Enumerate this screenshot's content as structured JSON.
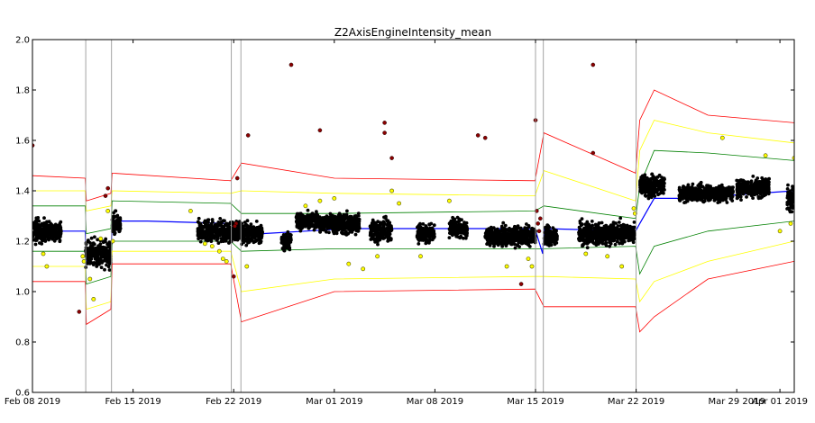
{
  "chart_data": {
    "type": "scatter",
    "title": "Z2AxisEngineIntensity_mean",
    "xlabel": "",
    "ylabel": "",
    "xlim": [
      "2019-02-08",
      "2019-04-02"
    ],
    "ylim": [
      0.6,
      2.0
    ],
    "x_ticks": [
      "Feb 08 2019",
      "Feb 15 2019",
      "Feb 22 2019",
      "Mar 01 2019",
      "Mar 08 2019",
      "Mar 15 2019",
      "Mar 22 2019",
      "Mar 29 2019",
      "Apr 01 2019"
    ],
    "y_ticks": [
      "0.6",
      "0.8",
      "1.0",
      "1.2",
      "1.4",
      "1.6",
      "1.8",
      "2.0"
    ],
    "grid": false,
    "colors": {
      "normal_points": "#000000",
      "warning_points": "#ffff00",
      "outlier_points": "#8b0000",
      "mean_line": "#0000ff",
      "band_1_sigma": "#008000",
      "band_2_sigma": "#ffff00",
      "band_3_sigma": "#ff0000",
      "segment_lines": "#999999"
    },
    "segment_boundaries": [
      "2019-02-11T17:00",
      "2019-02-13T12:00",
      "2019-02-21T20:00",
      "2019-02-22T12:00",
      "2019-03-15T00:00",
      "2019-03-15T13:00",
      "2019-03-22T00:00"
    ],
    "mean_line": {
      "x": [
        "2019-02-08",
        "2019-02-09",
        "2019-02-11T16:00",
        "2019-02-11T18:00",
        "2019-02-12T12:00",
        "2019-02-13T11:00",
        "2019-02-13T13:00",
        "2019-02-16",
        "2019-02-21T19:00",
        "2019-02-22T11:00",
        "2019-02-22T13:00",
        "2019-02-24",
        "2019-02-27",
        "2019-03-02",
        "2019-03-08",
        "2019-03-14T23:00",
        "2019-03-15T12:00",
        "2019-03-15T14:00",
        "2019-03-21T23:00",
        "2019-03-22T06:00",
        "2019-03-23T06:00",
        "2019-03-25",
        "2019-03-28",
        "2019-04-02"
      ],
      "y": [
        1.25,
        1.24,
        1.24,
        1.12,
        1.15,
        1.15,
        1.28,
        1.28,
        1.27,
        1.25,
        1.23,
        1.23,
        1.24,
        1.25,
        1.25,
        1.25,
        1.15,
        1.25,
        1.24,
        1.27,
        1.37,
        1.37,
        1.38,
        1.4
      ]
    },
    "bands": [
      {
        "level": "1 sigma",
        "x": [
          "2019-02-08",
          "2019-02-11T16:00",
          "2019-02-11T18:00",
          "2019-02-13T11:00",
          "2019-02-13T13:00",
          "2019-02-21T19:00",
          "2019-02-22T13:00",
          "2019-03-01",
          "2019-03-14T23:00",
          "2019-03-15T14:00",
          "2019-03-21T23:00",
          "2019-03-22T06:00",
          "2019-03-23T06:00",
          "2019-03-27",
          "2019-04-02"
        ],
        "upper": [
          1.34,
          1.34,
          1.23,
          1.25,
          1.36,
          1.35,
          1.31,
          1.31,
          1.32,
          1.34,
          1.29,
          1.42,
          1.56,
          1.55,
          1.52
        ],
        "lower": [
          1.16,
          1.16,
          1.03,
          1.06,
          1.2,
          1.2,
          1.16,
          1.17,
          1.17,
          1.17,
          1.18,
          1.07,
          1.18,
          1.24,
          1.28
        ]
      },
      {
        "level": "2 sigma",
        "x": [
          "2019-02-08",
          "2019-02-11T16:00",
          "2019-02-11T18:00",
          "2019-02-13T11:00",
          "2019-02-13T13:00",
          "2019-02-21T19:00",
          "2019-02-22T13:00",
          "2019-03-01",
          "2019-03-14T23:00",
          "2019-03-15T14:00",
          "2019-03-21T23:00",
          "2019-03-22T06:00",
          "2019-03-23T06:00",
          "2019-03-27",
          "2019-04-02"
        ],
        "upper": [
          1.4,
          1.4,
          1.32,
          1.34,
          1.4,
          1.39,
          1.4,
          1.39,
          1.38,
          1.48,
          1.36,
          1.56,
          1.68,
          1.63,
          1.59
        ],
        "lower": [
          1.1,
          1.1,
          0.93,
          0.96,
          1.16,
          1.16,
          1.0,
          1.05,
          1.06,
          1.06,
          1.05,
          0.96,
          1.04,
          1.12,
          1.2
        ]
      },
      {
        "level": "3 sigma",
        "x": [
          "2019-02-08",
          "2019-02-11T16:00",
          "2019-02-11T18:00",
          "2019-02-13T11:00",
          "2019-02-13T13:00",
          "2019-02-21T19:00",
          "2019-02-22T13:00",
          "2019-03-01",
          "2019-03-14T23:00",
          "2019-03-15T14:00",
          "2019-03-21T23:00",
          "2019-03-22T06:00",
          "2019-03-23T06:00",
          "2019-03-27",
          "2019-04-02"
        ],
        "upper": [
          1.46,
          1.45,
          1.36,
          1.39,
          1.47,
          1.44,
          1.51,
          1.45,
          1.44,
          1.63,
          1.47,
          1.68,
          1.8,
          1.7,
          1.67
        ],
        "lower": [
          1.04,
          1.04,
          0.87,
          0.93,
          1.11,
          1.11,
          0.88,
          1.0,
          1.01,
          0.94,
          0.94,
          0.84,
          0.9,
          1.05,
          1.12
        ]
      }
    ],
    "point_clusters": [
      {
        "x_start": "2019-02-08",
        "x_end": "2019-02-08T20:00",
        "center": 1.24,
        "spread": 0.045
      },
      {
        "x_start": "2019-02-08T20:00",
        "x_end": "2019-02-10",
        "center": 1.24,
        "spread": 0.035
      },
      {
        "x_start": "2019-02-11T17:00",
        "x_end": "2019-02-13T11:00",
        "center": 1.15,
        "spread": 0.05
      },
      {
        "x_start": "2019-02-13T13:00",
        "x_end": "2019-02-14T03:00",
        "center": 1.27,
        "spread": 0.04
      },
      {
        "x_start": "2019-02-19T12:00",
        "x_end": "2019-02-22T11:00",
        "center": 1.24,
        "spread": 0.04
      },
      {
        "x_start": "2019-02-22T13:00",
        "x_end": "2019-02-24",
        "center": 1.23,
        "spread": 0.035
      },
      {
        "x_start": "2019-02-25T08:00",
        "x_end": "2019-02-26",
        "center": 1.2,
        "spread": 0.03
      },
      {
        "x_start": "2019-02-26T08:00",
        "x_end": "2019-02-28",
        "center": 1.28,
        "spread": 0.03
      },
      {
        "x_start": "2019-02-28",
        "x_end": "2019-03-02T18:00",
        "center": 1.27,
        "spread": 0.035
      },
      {
        "x_start": "2019-03-03T12:00",
        "x_end": "2019-03-05",
        "center": 1.24,
        "spread": 0.04
      },
      {
        "x_start": "2019-03-06T18:00",
        "x_end": "2019-03-08",
        "center": 1.23,
        "spread": 0.035
      },
      {
        "x_start": "2019-03-09",
        "x_end": "2019-03-10T06:00",
        "center": 1.25,
        "spread": 0.035
      },
      {
        "x_start": "2019-03-11T12:00",
        "x_end": "2019-03-15",
        "center": 1.22,
        "spread": 0.035
      },
      {
        "x_start": "2019-03-15T14:00",
        "x_end": "2019-03-16T12:00",
        "center": 1.22,
        "spread": 0.035
      },
      {
        "x_start": "2019-03-18",
        "x_end": "2019-03-21T22:00",
        "center": 1.23,
        "spread": 0.04
      },
      {
        "x_start": "2019-03-22T06:00",
        "x_end": "2019-03-24",
        "center": 1.42,
        "spread": 0.04
      },
      {
        "x_start": "2019-03-25",
        "x_end": "2019-03-28T18:00",
        "center": 1.39,
        "spread": 0.03
      },
      {
        "x_start": "2019-03-29",
        "x_end": "2019-03-31T06:00",
        "center": 1.41,
        "spread": 0.035
      },
      {
        "x_start": "2019-04-01T12:00",
        "x_end": "2019-04-02",
        "center": 1.37,
        "spread": 0.05
      }
    ],
    "warning_points": [
      {
        "x": "2019-02-08T18:00",
        "y": 1.15
      },
      {
        "x": "2019-02-09",
        "y": 1.1
      },
      {
        "x": "2019-02-11T14:00",
        "y": 1.12
      },
      {
        "x": "2019-02-11T12:00",
        "y": 1.14
      },
      {
        "x": "2019-02-12",
        "y": 1.05
      },
      {
        "x": "2019-02-12T06:00",
        "y": 0.97
      },
      {
        "x": "2019-02-12T18:00",
        "y": 1.21
      },
      {
        "x": "2019-02-13T06:00",
        "y": 1.32
      },
      {
        "x": "2019-02-13T14:00",
        "y": 1.2
      },
      {
        "x": "2019-02-19",
        "y": 1.32
      },
      {
        "x": "2019-02-20",
        "y": 1.19
      },
      {
        "x": "2019-02-20T12:00",
        "y": 1.18
      },
      {
        "x": "2019-02-21",
        "y": 1.16
      },
      {
        "x": "2019-02-21T06:00",
        "y": 1.13
      },
      {
        "x": "2019-02-21T12:00",
        "y": 1.12
      },
      {
        "x": "2019-02-22T22:00",
        "y": 1.1
      },
      {
        "x": "2019-02-27",
        "y": 1.34
      },
      {
        "x": "2019-02-28",
        "y": 1.36
      },
      {
        "x": "2019-03-01",
        "y": 1.37
      },
      {
        "x": "2019-03-02",
        "y": 1.11
      },
      {
        "x": "2019-03-03",
        "y": 1.09
      },
      {
        "x": "2019-03-04",
        "y": 1.14
      },
      {
        "x": "2019-03-05",
        "y": 1.4
      },
      {
        "x": "2019-03-05T12:00",
        "y": 1.35
      },
      {
        "x": "2019-03-07",
        "y": 1.14
      },
      {
        "x": "2019-03-09",
        "y": 1.36
      },
      {
        "x": "2019-03-13",
        "y": 1.1
      },
      {
        "x": "2019-03-14T12:00",
        "y": 1.13
      },
      {
        "x": "2019-03-14T18:00",
        "y": 1.1
      },
      {
        "x": "2019-03-18T12:00",
        "y": 1.15
      },
      {
        "x": "2019-03-20",
        "y": 1.14
      },
      {
        "x": "2019-03-21",
        "y": 1.1
      },
      {
        "x": "2019-03-21T20:00",
        "y": 1.33
      },
      {
        "x": "2019-03-21T22:00",
        "y": 1.31
      },
      {
        "x": "2019-03-28",
        "y": 1.61
      },
      {
        "x": "2019-03-31",
        "y": 1.54
      },
      {
        "x": "2019-04-01",
        "y": 1.24
      },
      {
        "x": "2019-04-01T18:00",
        "y": 1.27
      },
      {
        "x": "2019-04-02",
        "y": 1.53
      }
    ],
    "outlier_points": [
      {
        "x": "2019-02-08",
        "y": 1.58
      },
      {
        "x": "2019-02-11T06:00",
        "y": 0.92
      },
      {
        "x": "2019-02-13T06:00",
        "y": 1.41
      },
      {
        "x": "2019-02-13T02:00",
        "y": 1.38
      },
      {
        "x": "2019-02-22T06:00",
        "y": 1.45
      },
      {
        "x": "2019-02-22T04:00",
        "y": 1.27
      },
      {
        "x": "2019-02-22T02:00",
        "y": 1.26
      },
      {
        "x": "2019-02-22",
        "y": 1.06
      },
      {
        "x": "2019-02-23",
        "y": 1.62
      },
      {
        "x": "2019-02-26",
        "y": 1.9
      },
      {
        "x": "2019-02-28",
        "y": 1.64
      },
      {
        "x": "2019-03-04T12:00",
        "y": 1.67
      },
      {
        "x": "2019-03-04T12:00",
        "y": 1.63
      },
      {
        "x": "2019-03-05",
        "y": 1.53
      },
      {
        "x": "2019-03-11",
        "y": 1.62
      },
      {
        "x": "2019-03-11T12:00",
        "y": 1.61
      },
      {
        "x": "2019-03-14",
        "y": 1.03
      },
      {
        "x": "2019-03-15",
        "y": 1.68
      },
      {
        "x": "2019-03-15T02:00",
        "y": 1.32
      },
      {
        "x": "2019-03-15T04:00",
        "y": 1.27
      },
      {
        "x": "2019-03-15T06:00",
        "y": 1.24
      },
      {
        "x": "2019-03-15T08:00",
        "y": 1.29
      },
      {
        "x": "2019-03-19",
        "y": 1.9
      },
      {
        "x": "2019-03-19",
        "y": 1.55
      }
    ]
  }
}
